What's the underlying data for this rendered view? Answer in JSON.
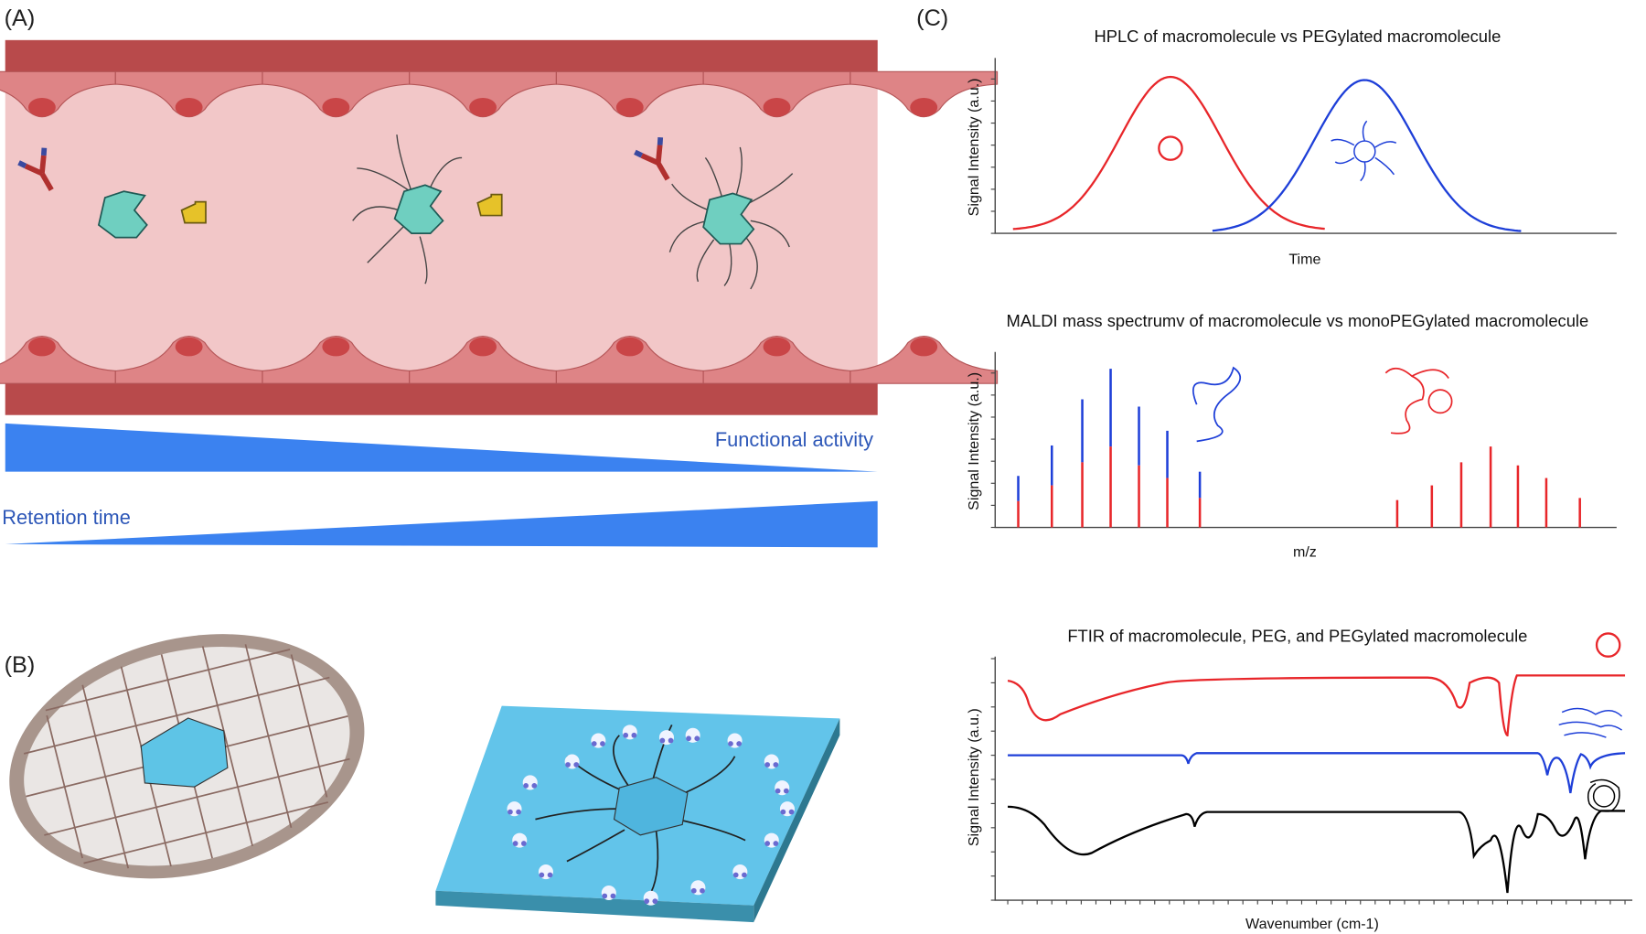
{
  "panel_a": {
    "label": "(A)",
    "functional_activity": "Functional activity",
    "retention_time": "Retention time"
  },
  "panel_b": {
    "label": "(B)"
  },
  "panel_c": {
    "label": "(C)",
    "hplc": {
      "title": "HPLC of macromolecule vs PEGylated macromolecule",
      "y_label": "Signal Intensity (a.u.)",
      "x_label": "Time"
    },
    "maldi": {
      "title": "MALDI mass spectrumv of macromolecule vs monoPEGylated macromolecule",
      "y_label": "Signal Intensity (a.u.)",
      "x_label": "m/z"
    },
    "ftir": {
      "title": "FTIR of macromolecule, PEG, and PEGylated macromolecule",
      "y_label": "Signal Intensity (a.u.)",
      "x_label": "Wavenumber (cm-1)"
    }
  }
}
